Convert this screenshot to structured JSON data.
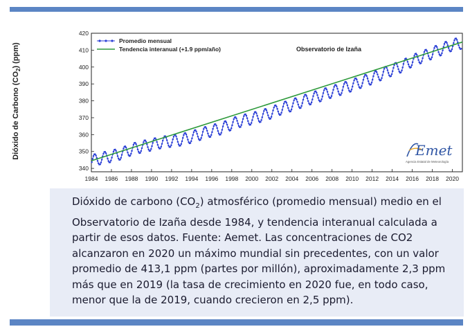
{
  "chart_data": {
    "type": "line",
    "ylabel": "Dióxido de Carbono (CO",
    "ylabel_sub": "2",
    "ylabel_tail": ") (ppm)",
    "annotation": "Observatorio de Izaña",
    "xlim": [
      1984,
      2021
    ],
    "ylim": [
      338,
      420
    ],
    "x_ticks": [
      "1984",
      "1986",
      "1988",
      "1990",
      "1992",
      "1994",
      "1996",
      "1998",
      "2000",
      "2002",
      "2004",
      "2006",
      "2008",
      "2010",
      "2012",
      "2014",
      "2016",
      "2018",
      "2020"
    ],
    "y_ticks": [
      "340",
      "350",
      "360",
      "370",
      "380",
      "390",
      "400",
      "410",
      "420"
    ],
    "legend_position": "top-left",
    "series": [
      {
        "name": "Promedio mensual",
        "color": "#2b3fd6",
        "style": "line-with-markers",
        "seasonal_amplitude_ppm": 3.5,
        "x": [
          1984.0,
          1985.0,
          1986.0,
          1987.0,
          1988.0,
          1989.0,
          1990.0,
          1991.0,
          1992.0,
          1993.0,
          1994.0,
          1995.0,
          1996.0,
          1997.0,
          1998.0,
          1999.0,
          2000.0,
          2001.0,
          2002.0,
          2003.0,
          2004.0,
          2005.0,
          2006.0,
          2007.0,
          2008.0,
          2009.0,
          2010.0,
          2011.0,
          2012.0,
          2013.0,
          2014.0,
          2015.0,
          2016.0,
          2017.0,
          2018.0,
          2019.0,
          2020.0,
          2020.9
        ],
        "y": [
          344.5,
          346.0,
          347.2,
          348.8,
          351.2,
          352.8,
          354.0,
          355.4,
          356.2,
          356.9,
          358.6,
          360.5,
          362.3,
          363.6,
          366.3,
          368.2,
          369.4,
          371.1,
          373.1,
          375.5,
          377.4,
          379.5,
          381.6,
          383.4,
          385.4,
          387.1,
          389.2,
          391.3,
          393.3,
          396.0,
          398.3,
          400.5,
          403.7,
          406.0,
          408.3,
          410.7,
          413.1,
          414.2
        ]
      },
      {
        "name": "Tendencia interanual (+1.9 ppm/año)",
        "color": "#2e9a3c",
        "style": "line",
        "x": [
          1984,
          2021
        ],
        "y": [
          344.5,
          414.8
        ]
      }
    ]
  },
  "caption": {
    "line1_a": "Dióxido de carbono (CO",
    "line1_sub": "2",
    "line1_b": ") atmosférico (promedio mensual) medio en el",
    "rest": "Observatorio de Izaña desde 1984, y tendencia interanual calculada a\npartir de esos datos. Fuente: Aemet. Las concentraciones de CO2\n alcanzaron en 2020 un máximo mundial sin precedentes, con un valor\npromedio de 413,1 ppm (partes por millón), aproximadamente 2,3 ppm\nmás que en 2019 (la tasa de crecimiento en 2020 fue, en todo caso,\nmenor que la de 2019, cuando crecieron en 2,5 ppm)."
  },
  "logo": {
    "text": "AEmet",
    "subtitle": "Agencia Estatal de Meteorología",
    "colors": {
      "primary": "#2f55a4",
      "accent": "#e8a21c"
    }
  },
  "colors": {
    "band": "#5b85c4",
    "caption_bg": "#e8ecf6"
  }
}
